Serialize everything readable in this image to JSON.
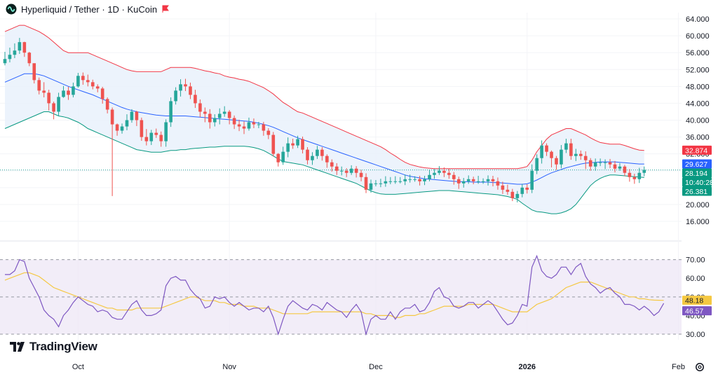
{
  "header": {
    "title": "Hyperliquid / Tether · 1D · KuCoin",
    "flag_icon": "red-flag-icon",
    "symbol_icon": "hyperliquid-logo-icon"
  },
  "branding": {
    "logo_text": "TradingView"
  },
  "settings_icon": "gear-icon",
  "colors": {
    "up": "#26a69a",
    "down": "#ef5350",
    "bb_upper": "#f23645",
    "bb_lower": "#089981",
    "bb_basis": "#2962ff",
    "bb_fill": "#e9f1fb",
    "rsi_line": "#7e57c2",
    "rsi_ma": "#f5c842",
    "rsi_band": "#ede7f6"
  },
  "chart_data": [
    {
      "type": "candlestick",
      "title": "Hyperliquid / Tether · 1D · KuCoin",
      "y_ticks": [
        "64.000",
        "60.000",
        "56.000",
        "52.000",
        "48.000",
        "44.000",
        "40.000",
        "36.000",
        "32.000",
        "28.000",
        "24.000",
        "20.000",
        "16.000"
      ],
      "ylim": [
        14.5,
        65.5
      ],
      "x_tick_labels": [
        {
          "label": "Oct",
          "bar": 15
        },
        {
          "label": "Nov",
          "bar": 46
        },
        {
          "label": "Dec",
          "bar": 76
        },
        {
          "label": "2026",
          "bar": 107
        },
        {
          "label": "Feb",
          "bar": 138
        }
      ],
      "last_price": 28.194,
      "countdown": "10:40:28",
      "badges": [
        {
          "label": "32.874",
          "value": 32.874,
          "color": "#f23645",
          "text_color": "#ffffff"
        },
        {
          "label": "29.627",
          "value": 29.627,
          "color": "#2962ff",
          "text_color": "#ffffff"
        },
        {
          "label": "28.194",
          "value": 28.194,
          "color": "#089981",
          "text_color": "#ffffff"
        },
        {
          "label": "10:40:28",
          "value": 26.9,
          "color": "#089981",
          "text_color": "#ffffff"
        },
        {
          "label": "26.381",
          "value": 26.381,
          "color": "#089981",
          "text_color": "#ffffff"
        }
      ],
      "closes": [
        54.5,
        55.5,
        56.5,
        58.5,
        56.0,
        53.5,
        49.5,
        47.0,
        46.5,
        44.0,
        42.0,
        45.5,
        47.0,
        46.0,
        48.0,
        50.5,
        49.5,
        49.0,
        48.0,
        47.5,
        45.0,
        42.5,
        39.0,
        37.5,
        38.5,
        40.0,
        42.0,
        40.0,
        36.0,
        35.0,
        37.0,
        36.5,
        35.0,
        39.5,
        44.5,
        47.0,
        48.5,
        48.0,
        46.0,
        44.0,
        42.0,
        41.5,
        39.5,
        40.5,
        41.5,
        42.0,
        40.5,
        39.0,
        38.5,
        38.0,
        39.5,
        39.0,
        39.0,
        37.5,
        36.5,
        32.0,
        30.0,
        32.5,
        34.5,
        34.0,
        35.5,
        33.0,
        30.5,
        31.5,
        33.0,
        31.5,
        30.0,
        29.0,
        28.0,
        28.0,
        27.5,
        28.5,
        27.5,
        26.5,
        23.5,
        25.0,
        25.0,
        25.0,
        25.5,
        25.5,
        25.5,
        25.5,
        26.0,
        26.0,
        26.0,
        25.5,
        26.0,
        27.0,
        27.5,
        28.0,
        27.5,
        27.0,
        26.0,
        25.0,
        25.5,
        26.0,
        25.5,
        25.5,
        25.5,
        26.0,
        25.5,
        24.5,
        23.5,
        23.0,
        21.5,
        22.5,
        24.0,
        23.5,
        28.0,
        31.0,
        34.0,
        32.5,
        31.0,
        29.5,
        33.0,
        34.5,
        31.5,
        32.0,
        31.5,
        30.5,
        29.0,
        30.0,
        30.0,
        30.0,
        29.5,
        28.5,
        29.0,
        27.5,
        26.5,
        26.0,
        27.5,
        28.2
      ],
      "highs": [
        56.2,
        57.2,
        58.2,
        59.5,
        58.6,
        56.2,
        53.3,
        50.1,
        49.0,
        47.2,
        44.4,
        46.5,
        48.1,
        47.9,
        48.9,
        51.2,
        51.3,
        50.8,
        49.6,
        48.5,
        47.9,
        45.4,
        43.0,
        39.2,
        39.2,
        41.4,
        42.6,
        42.2,
        40.6,
        37.9,
        37.7,
        38.0,
        37.3,
        40.2,
        45.4,
        47.8,
        49.7,
        49.8,
        48.9,
        47.2,
        44.9,
        43.0,
        42.6,
        41.4,
        42.8,
        43.3,
        42.4,
        41.1,
        40.1,
        39.7,
        40.6,
        40.4,
        39.6,
        39.6,
        38.1,
        37.2,
        32.2,
        33.7,
        35.9,
        35.6,
        36.3,
        36.1,
        33.6,
        32.4,
        33.9,
        33.6,
        31.9,
        30.7,
        29.8,
        29.0,
        28.6,
        29.3,
        29.1,
        28.2,
        27.4,
        25.9,
        25.8,
        26.1,
        26.7,
        26.5,
        26.7,
        26.5,
        27.1,
        27.1,
        26.7,
        26.8,
        26.8,
        28.2,
        28.4,
        29.1,
        28.8,
        28.5,
        27.7,
        26.6,
        26.3,
        26.9,
        26.6,
        26.8,
        26.2,
        26.9,
        26.8,
        26.4,
        25.4,
        24.7,
        23.7,
        23.2,
        24.9,
        24.8,
        29.5,
        31.9,
        35.2,
        34.5,
        32.8,
        31.5,
        34.1,
        35.6,
        35.6,
        33.2,
        32.8,
        32.6,
        31.0,
        30.9,
        30.9,
        30.7,
        30.8,
        30.3,
        29.8,
        29.4,
        28.4,
        27.3,
        28.7,
        29.0
      ],
      "lows": [
        53.0,
        53.7,
        54.7,
        55.7,
        55.0,
        52.8,
        48.7,
        46.1,
        45.4,
        42.3,
        40.2,
        40.9,
        45.3,
        44.8,
        45.4,
        47.7,
        48.4,
        48.0,
        47.3,
        46.6,
        43.9,
        41.6,
        22.0,
        36.3,
        36.8,
        37.6,
        39.4,
        38.6,
        35.1,
        34.0,
        34.1,
        35.8,
        33.7,
        33.7,
        38.4,
        43.7,
        45.6,
        46.9,
        45.0,
        42.9,
        40.7,
        39.5,
        38.0,
        38.5,
        39.0,
        40.8,
        39.0,
        37.9,
        37.4,
        36.7,
        37.5,
        38.1,
        38.1,
        36.3,
        35.5,
        31.4,
        29.0,
        29.4,
        31.2,
        33.2,
        33.4,
        32.1,
        29.5,
        29.4,
        30.8,
        30.4,
        28.7,
        27.8,
        27.0,
        26.9,
        26.5,
        27.0,
        26.4,
        25.5,
        22.7,
        22.8,
        24.3,
        24.1,
        24.2,
        24.8,
        24.9,
        25.0,
        24.6,
        25.2,
        25.4,
        24.5,
        24.6,
        25.5,
        26.1,
        27.0,
        26.5,
        26.1,
        24.7,
        23.7,
        24.0,
        24.9,
        24.8,
        24.9,
        24.9,
        24.5,
        24.3,
        23.5,
        22.5,
        22.3,
        20.8,
        20.5,
        21.7,
        22.6,
        22.7,
        27.2,
        29.7,
        31.5,
        28.8,
        28.2,
        28.6,
        32.2,
        30.6,
        30.3,
        30.6,
        28.4,
        28.0,
        28.0,
        29.1,
        28.4,
        28.6,
        27.6,
        28.0,
        26.7,
        25.4,
        24.9,
        25.1,
        26.7
      ],
      "bollinger": {
        "upper": [
          61.0,
          61.5,
          62.0,
          62.5,
          62.5,
          62.0,
          61.5,
          61.0,
          60.3,
          59.5,
          58.5,
          57.5,
          56.5,
          56.0,
          56.0,
          56.0,
          56.0,
          56.0,
          55.5,
          55.0,
          54.5,
          54.0,
          53.5,
          53.0,
          52.5,
          52.0,
          51.7,
          51.5,
          51.5,
          51.5,
          51.5,
          51.5,
          51.5,
          52.0,
          52.5,
          52.5,
          52.5,
          52.5,
          52.5,
          52.3,
          52.0,
          51.7,
          51.5,
          51.2,
          51.0,
          50.5,
          50.2,
          50.0,
          49.7,
          49.5,
          49.2,
          48.7,
          48.2,
          47.7,
          47.0,
          46.2,
          45.2,
          44.2,
          43.5,
          42.7,
          42.0,
          41.7,
          41.2,
          40.7,
          40.2,
          39.7,
          39.2,
          38.7,
          38.2,
          37.7,
          37.2,
          36.7,
          36.2,
          35.7,
          35.2,
          34.7,
          34.2,
          33.7,
          33.0,
          32.2,
          31.5,
          30.7,
          30.0,
          29.5,
          29.2,
          28.9,
          28.7,
          28.6,
          28.5,
          28.5,
          28.5,
          28.5,
          28.5,
          28.5,
          28.5,
          28.5,
          28.5,
          28.5,
          28.5,
          28.5,
          28.5,
          28.5,
          28.5,
          28.5,
          28.5,
          28.5,
          28.7,
          29.0,
          30.5,
          32.5,
          34.0,
          35.5,
          36.5,
          37.0,
          37.5,
          38.0,
          38.0,
          37.5,
          37.0,
          36.5,
          35.8,
          35.2,
          34.7,
          34.5,
          34.3,
          34.3,
          34.3,
          34.0,
          33.6,
          33.2,
          32.9,
          32.8
        ],
        "basis": [
          49.0,
          49.5,
          50.0,
          50.5,
          51.0,
          51.0,
          51.0,
          50.8,
          50.5,
          50.0,
          49.5,
          49.0,
          48.5,
          48.0,
          47.6,
          47.2,
          46.8,
          46.4,
          46.0,
          45.5,
          45.0,
          44.5,
          44.0,
          43.5,
          43.0,
          42.6,
          42.3,
          42.0,
          41.8,
          41.6,
          41.4,
          41.2,
          41.1,
          41.0,
          41.0,
          41.0,
          41.0,
          41.0,
          40.9,
          40.8,
          40.7,
          40.6,
          40.5,
          40.4,
          40.3,
          40.2,
          40.1,
          40.0,
          39.9,
          39.8,
          39.7,
          39.5,
          39.3,
          39.0,
          38.7,
          38.3,
          37.8,
          37.3,
          36.8,
          36.3,
          35.8,
          35.4,
          35.0,
          34.6,
          34.2,
          33.8,
          33.4,
          33.0,
          32.6,
          32.2,
          31.8,
          31.4,
          31.0,
          30.6,
          30.2,
          29.8,
          29.4,
          29.0,
          28.6,
          28.2,
          27.8,
          27.4,
          27.0,
          26.7,
          26.5,
          26.3,
          26.1,
          26.0,
          25.9,
          25.8,
          25.7,
          25.6,
          25.5,
          25.4,
          25.4,
          25.4,
          25.3,
          25.3,
          25.3,
          25.3,
          25.2,
          25.2,
          25.1,
          25.0,
          24.9,
          24.8,
          24.8,
          24.9,
          25.3,
          25.8,
          26.4,
          27.0,
          27.5,
          27.9,
          28.3,
          28.7,
          29.0,
          29.3,
          29.6,
          29.8,
          29.9,
          30.0,
          30.1,
          30.1,
          30.1,
          30.1,
          30.0,
          29.9,
          29.8,
          29.7,
          29.6,
          29.6
        ],
        "lower": [
          38.0,
          38.5,
          39.0,
          39.5,
          40.0,
          40.5,
          41.0,
          41.5,
          42.0,
          42.0,
          41.5,
          41.0,
          40.8,
          40.5,
          40.0,
          39.5,
          38.8,
          38.0,
          37.5,
          37.0,
          36.5,
          36.0,
          35.5,
          35.0,
          34.5,
          34.0,
          33.5,
          33.0,
          32.8,
          32.6,
          32.4,
          32.4,
          32.4,
          32.6,
          32.8,
          32.8,
          33.0,
          33.0,
          33.2,
          33.3,
          33.4,
          33.5,
          33.6,
          33.6,
          33.7,
          33.8,
          33.8,
          33.8,
          33.8,
          33.8,
          33.7,
          33.5,
          33.2,
          32.8,
          32.2,
          31.5,
          30.8,
          30.2,
          30.0,
          29.8,
          29.6,
          29.4,
          29.0,
          28.6,
          28.2,
          27.8,
          27.4,
          27.0,
          26.6,
          26.2,
          25.8,
          25.4,
          25.0,
          24.4,
          23.8,
          23.2,
          22.8,
          22.5,
          22.4,
          22.4,
          22.4,
          22.5,
          22.6,
          22.7,
          22.8,
          22.9,
          23.0,
          23.1,
          23.2,
          23.3,
          23.3,
          23.3,
          23.2,
          23.1,
          23.0,
          22.9,
          22.8,
          22.7,
          22.6,
          22.5,
          22.4,
          22.3,
          22.1,
          21.9,
          21.6,
          21.2,
          20.3,
          19.5,
          18.7,
          18.3,
          18.2,
          18.0,
          17.8,
          17.8,
          18.0,
          18.4,
          19.0,
          20.0,
          21.5,
          23.0,
          24.5,
          25.5,
          26.2,
          26.7,
          27.0,
          27.0,
          26.9,
          26.8,
          26.7,
          26.6,
          26.5,
          26.4
        ]
      }
    },
    {
      "type": "line",
      "title": "",
      "y_ticks": [
        "70.00",
        "60.00",
        "50.00",
        "40.00",
        "30.00"
      ],
      "ylim": [
        27.0,
        72.5
      ],
      "band": [
        30,
        70
      ],
      "midline": 50,
      "badges": [
        {
          "label": "48.18",
          "value": 48.18,
          "color": "#f5c842",
          "text_color": "#131722"
        },
        {
          "label": "46.57",
          "value": 46.57,
          "color": "#7e57c2",
          "text_color": "#ffffff"
        }
      ],
      "series": [
        {
          "color": "#7e57c2",
          "values": [
            62,
            62,
            64,
            70,
            69,
            60,
            55,
            50,
            43,
            40,
            38,
            34,
            40,
            43,
            47,
            50,
            48,
            46,
            45,
            42,
            43,
            42,
            39,
            38,
            38,
            42,
            46,
            48,
            43,
            40,
            40,
            41,
            43,
            56,
            60,
            61,
            59,
            59,
            54,
            51,
            49,
            44,
            45,
            50,
            49,
            50,
            47,
            45,
            47,
            45,
            43,
            44,
            44,
            42,
            45,
            39,
            30,
            38,
            45,
            48,
            46,
            44,
            43,
            46,
            45,
            43,
            47,
            45,
            43,
            42,
            39,
            43,
            46,
            42,
            30,
            38,
            40,
            38,
            38,
            42,
            38,
            42,
            44,
            44,
            46,
            42,
            43,
            47,
            53,
            55,
            50,
            49,
            45,
            44,
            45,
            47,
            47,
            44,
            46,
            48,
            46,
            42,
            38,
            35,
            36,
            40,
            46,
            45,
            66,
            72,
            64,
            61,
            60,
            62,
            66,
            66,
            62,
            66,
            68,
            61,
            57,
            55,
            52,
            54,
            55,
            52,
            50,
            46,
            46,
            45,
            43,
            45,
            43,
            40,
            42,
            46.6
          ]
        },
        {
          "color": "#f5c842",
          "values": [
            59,
            60,
            61,
            62,
            63,
            63,
            62,
            61,
            59,
            57,
            55,
            54,
            53,
            52,
            51,
            50,
            49,
            48,
            47,
            46,
            45,
            44,
            44,
            43,
            43,
            43,
            43,
            44,
            44,
            44,
            44,
            44,
            44,
            45,
            46,
            47,
            48,
            49,
            50,
            50,
            49,
            48,
            48,
            48,
            47,
            47,
            46,
            46,
            46,
            45,
            45,
            45,
            44,
            44,
            44,
            43,
            42,
            41,
            41,
            41,
            41,
            41,
            41,
            42,
            42,
            42,
            42,
            42,
            42,
            42,
            42,
            42,
            42,
            42,
            41,
            41,
            40,
            40,
            40,
            40,
            39,
            39,
            40,
            40,
            40,
            41,
            41,
            42,
            43,
            44,
            45,
            45,
            45,
            45,
            45,
            46,
            46,
            46,
            46,
            46,
            46,
            45,
            44,
            43,
            42,
            42,
            42,
            42,
            44,
            46,
            47,
            48,
            49,
            51,
            53,
            55,
            56,
            57,
            58,
            58,
            58,
            57,
            56,
            55,
            54,
            53,
            52,
            51,
            50,
            50,
            49,
            49,
            48.5,
            48.3,
            48.2,
            48.18
          ]
        }
      ]
    }
  ]
}
